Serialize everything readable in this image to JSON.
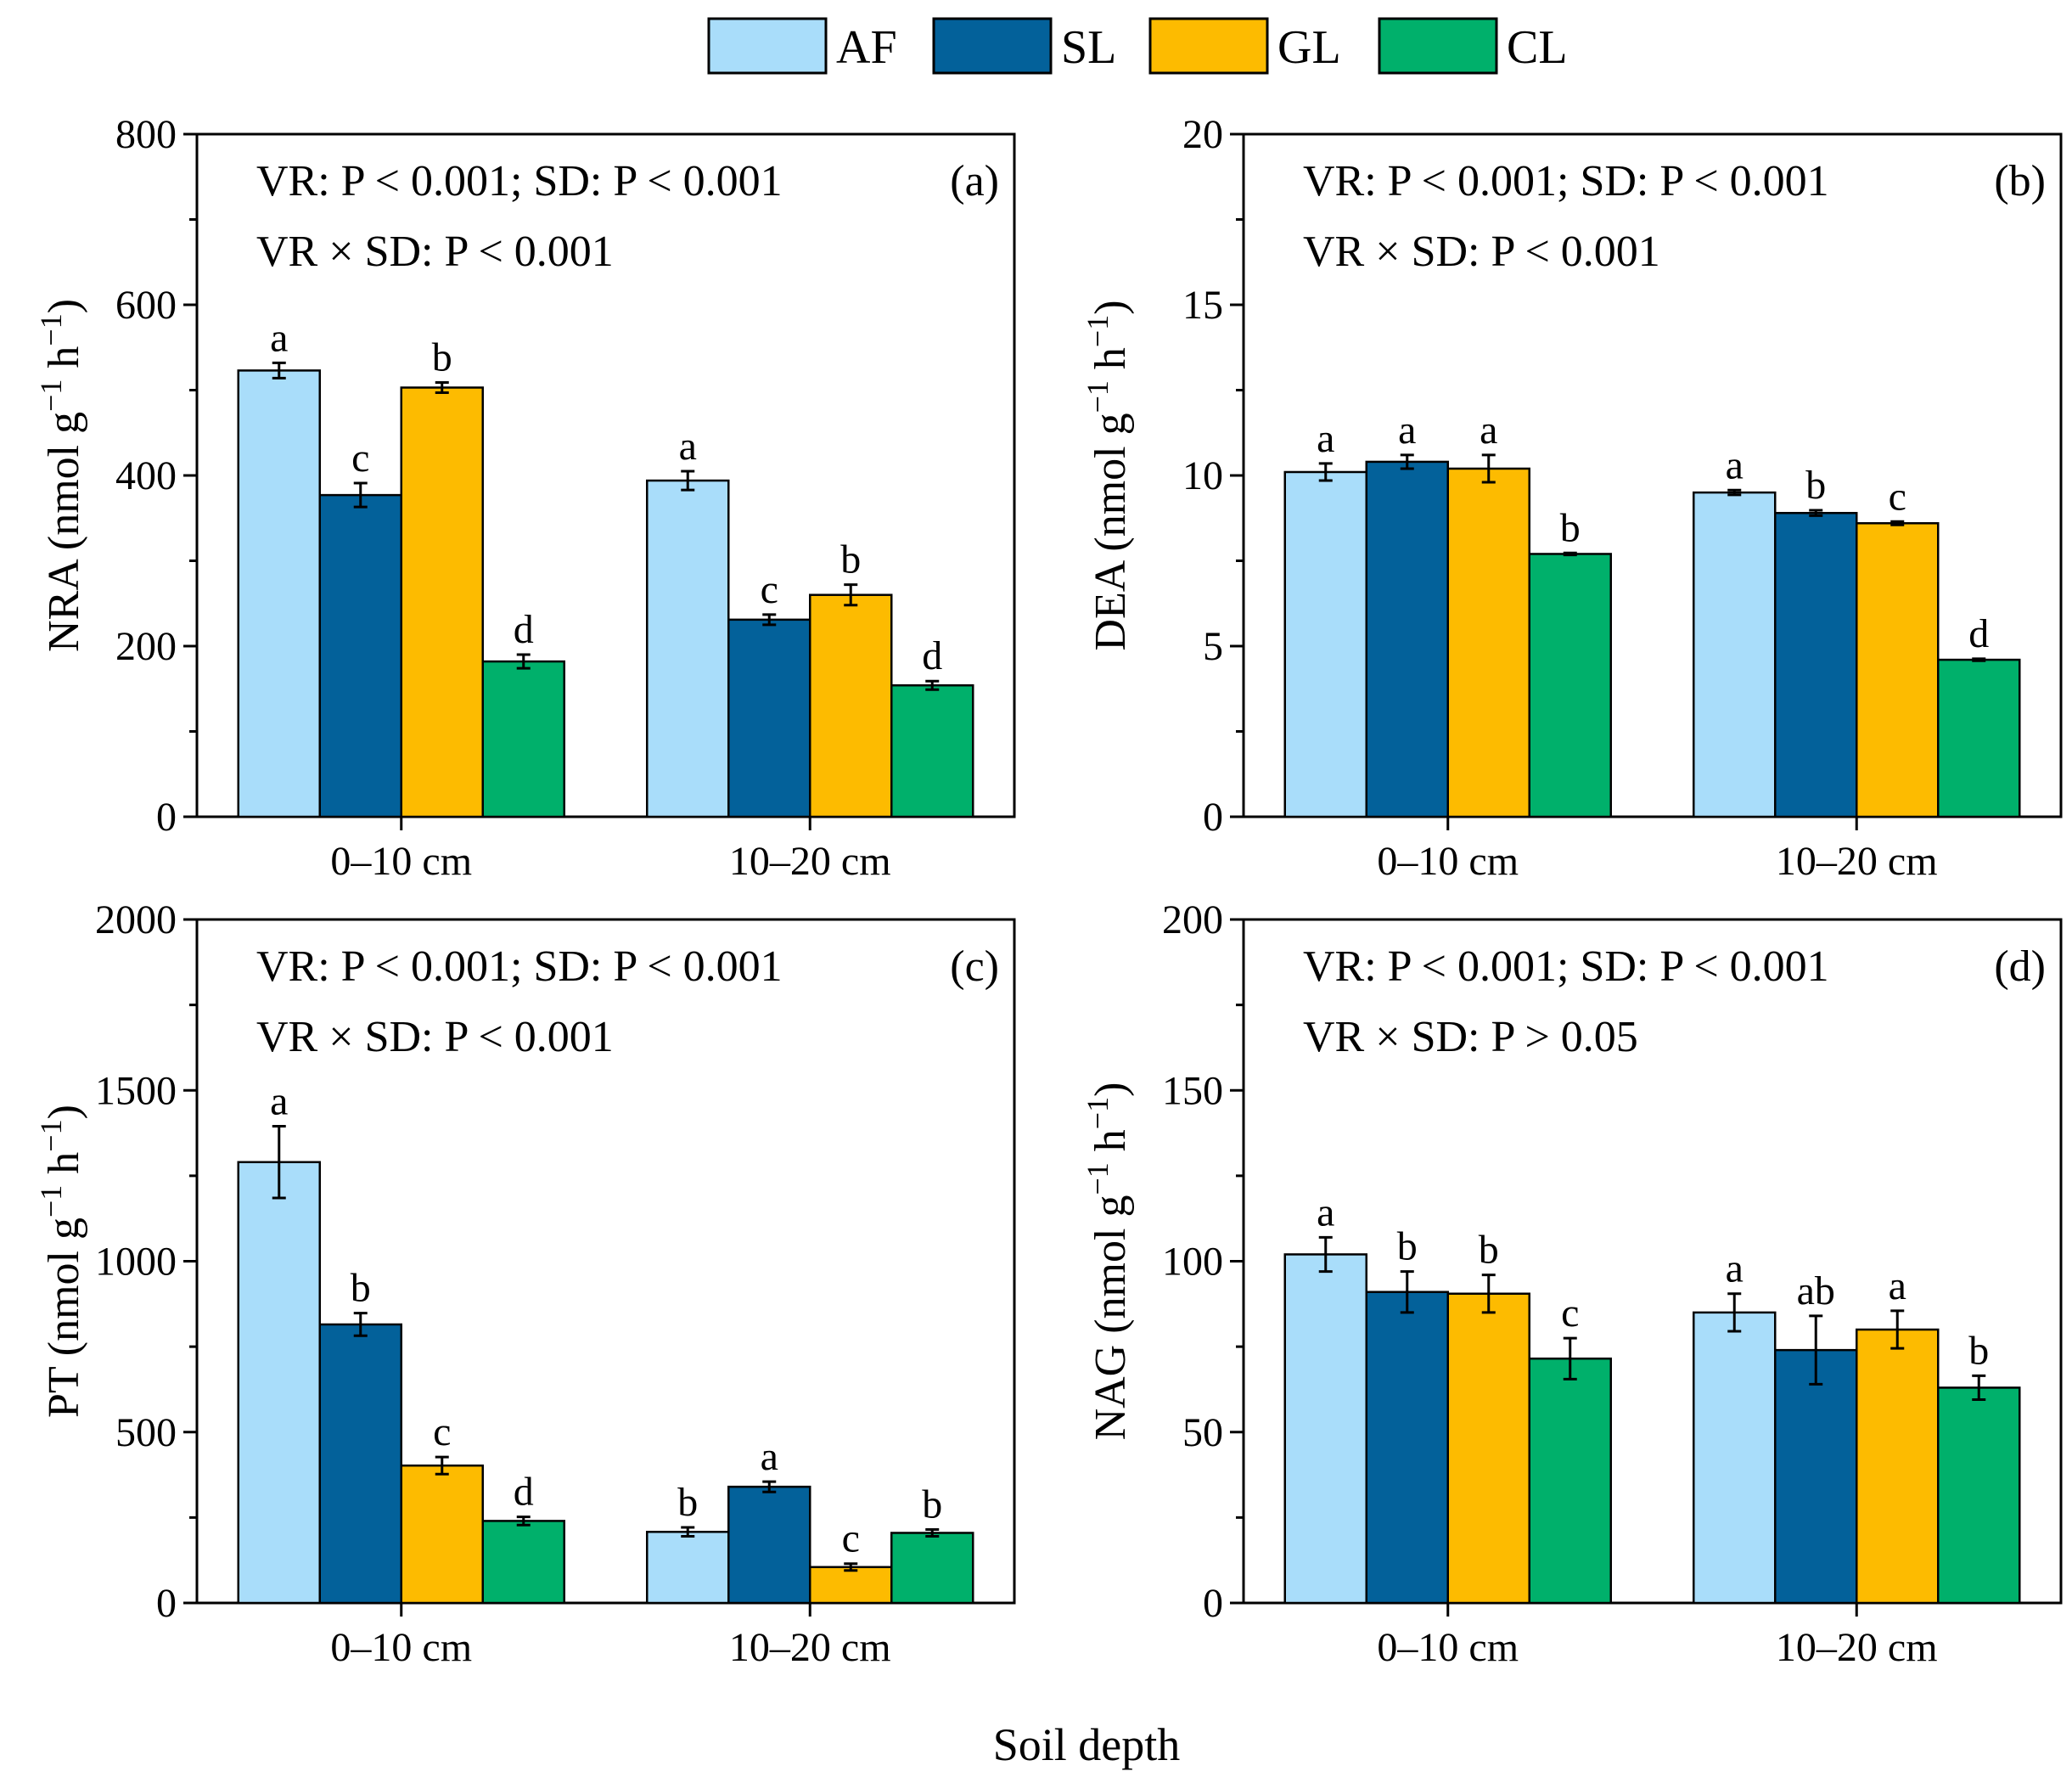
{
  "figure": {
    "x_axis_title": "Soil depth"
  },
  "legend": [
    {
      "key": "AF",
      "label": "AF",
      "color": "#A9DDFA"
    },
    {
      "key": "SL",
      "label": "SL",
      "color": "#03619A"
    },
    {
      "key": "GL",
      "label": "GL",
      "color": "#FDBB00"
    },
    {
      "key": "CL",
      "label": "CL",
      "color": "#00B06B"
    }
  ],
  "chart_data": [
    {
      "type": "bar",
      "panel": "(a)",
      "ylabel_main": "NRA (nmol g",
      "ylabel_sup1": "−1",
      "ylabel_mid": " h",
      "ylabel_sup2": "−1",
      "ylabel_end": ")",
      "ylim": [
        0,
        800
      ],
      "yticks": [
        "0",
        "200",
        "400",
        "600",
        "800"
      ],
      "categories": [
        "0–10 cm",
        "10–20 cm"
      ],
      "stats_line1": "VR: P < 0.001; SD: P < 0.001",
      "stats_line2": "VR × SD: P < 0.001",
      "series": [
        {
          "name": "AF",
          "values": [
            523,
            394
          ],
          "errors": [
            9,
            11
          ],
          "letters": [
            "a",
            "a"
          ]
        },
        {
          "name": "SL",
          "values": [
            377,
            231
          ],
          "errors": [
            14,
            6
          ],
          "letters": [
            "c",
            "c"
          ]
        },
        {
          "name": "GL",
          "values": [
            503,
            260
          ],
          "errors": [
            6,
            12
          ],
          "letters": [
            "b",
            "b"
          ]
        },
        {
          "name": "CL",
          "values": [
            182,
            154
          ],
          "errors": [
            8,
            5
          ],
          "letters": [
            "d",
            "d"
          ]
        }
      ]
    },
    {
      "type": "bar",
      "panel": "(b)",
      "ylabel_main": "DEA (nmol g",
      "ylabel_sup1": "−1",
      "ylabel_mid": " h",
      "ylabel_sup2": "−1",
      "ylabel_end": ")",
      "ylim": [
        0,
        20
      ],
      "yticks": [
        "0",
        "5",
        "10",
        "15",
        "20"
      ],
      "categories": [
        "0–10 cm",
        "10–20 cm"
      ],
      "stats_line1": "VR: P < 0.001; SD: P < 0.001",
      "stats_line2": "VR × SD: P < 0.001",
      "series": [
        {
          "name": "AF",
          "values": [
            10.1,
            9.5
          ],
          "errors": [
            0.25,
            0.07
          ],
          "letters": [
            "a",
            "a"
          ]
        },
        {
          "name": "SL",
          "values": [
            10.4,
            8.9
          ],
          "errors": [
            0.2,
            0.08
          ],
          "letters": [
            "a",
            "b"
          ]
        },
        {
          "name": "GL",
          "values": [
            10.2,
            8.6
          ],
          "errors": [
            0.4,
            0.05
          ],
          "letters": [
            "a",
            "c"
          ]
        },
        {
          "name": "CL",
          "values": [
            7.7,
            4.6
          ],
          "errors": [
            0.03,
            0.03
          ],
          "letters": [
            "b",
            "d"
          ]
        }
      ]
    },
    {
      "type": "bar",
      "panel": "(c)",
      "ylabel_main": "PT (nmol g",
      "ylabel_sup1": "−1",
      "ylabel_mid": " h",
      "ylabel_sup2": "−1",
      "ylabel_end": ")",
      "ylim": [
        0,
        2000
      ],
      "yticks": [
        "0",
        "500",
        "1000",
        "1500",
        "2000"
      ],
      "categories": [
        "0–10 cm",
        "10–20 cm"
      ],
      "stats_line1": "VR: P < 0.001; SD: P < 0.001",
      "stats_line2": "VR × SD: P < 0.001",
      "series": [
        {
          "name": "AF",
          "values": [
            1290,
            208
          ],
          "errors": [
            105,
            13
          ],
          "letters": [
            "a",
            "b"
          ]
        },
        {
          "name": "SL",
          "values": [
            815,
            340
          ],
          "errors": [
            33,
            15
          ],
          "letters": [
            "b",
            "a"
          ]
        },
        {
          "name": "GL",
          "values": [
            402,
            105
          ],
          "errors": [
            25,
            10
          ],
          "letters": [
            "c",
            "c"
          ]
        },
        {
          "name": "CL",
          "values": [
            240,
            205
          ],
          "errors": [
            12,
            10
          ],
          "letters": [
            "d",
            "b"
          ]
        }
      ]
    },
    {
      "type": "bar",
      "panel": "(d)",
      "ylabel_main": "NAG (nmol g",
      "ylabel_sup1": "−1",
      "ylabel_mid": " h",
      "ylabel_sup2": "−1",
      "ylabel_end": ")",
      "ylim": [
        0,
        200
      ],
      "yticks": [
        "0",
        "50",
        "100",
        "150",
        "200"
      ],
      "categories": [
        "0–10 cm",
        "10–20 cm"
      ],
      "stats_line1": "VR: P < 0.001; SD: P < 0.001",
      "stats_line2": "VR × SD: P > 0.05",
      "series": [
        {
          "name": "AF",
          "values": [
            102,
            85
          ],
          "errors": [
            5,
            5.5
          ],
          "letters": [
            "a",
            "a"
          ]
        },
        {
          "name": "SL",
          "values": [
            91,
            74
          ],
          "errors": [
            6,
            10
          ],
          "letters": [
            "b",
            "ab"
          ]
        },
        {
          "name": "GL",
          "values": [
            90.5,
            80
          ],
          "errors": [
            5.5,
            5.5
          ],
          "letters": [
            "b",
            "a"
          ]
        },
        {
          "name": "CL",
          "values": [
            71.5,
            63
          ],
          "errors": [
            6,
            3.5
          ],
          "letters": [
            "c",
            "b"
          ]
        }
      ]
    }
  ]
}
